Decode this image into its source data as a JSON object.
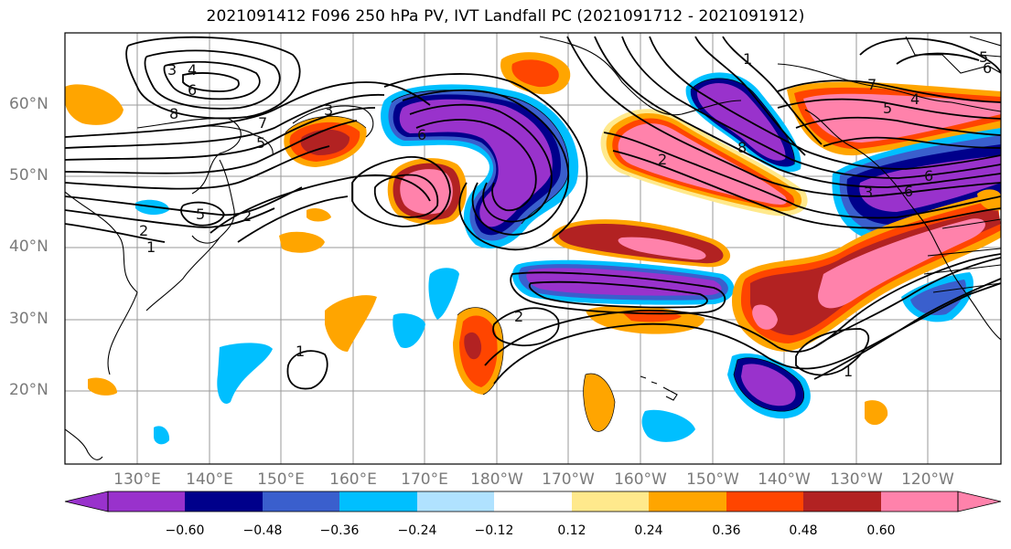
{
  "title": "2021091412 F096 250 hPa PV, IVT Landfall PC (2021091712 - 2021091912)",
  "lat_labels": [
    "60°N",
    "50°N",
    "40°N",
    "30°N",
    "20°N"
  ],
  "lon_labels": [
    "130°E",
    "140°E",
    "150°E",
    "160°E",
    "170°E",
    "180°W",
    "170°W",
    "160°W",
    "150°W",
    "140°W",
    "130°W",
    "120°W"
  ],
  "colorbar": {
    "ticks": [
      "−0.60",
      "−0.48",
      "−0.36",
      "−0.24",
      "−0.12",
      "0.12",
      "0.24",
      "0.36",
      "0.48",
      "0.60"
    ],
    "colors": [
      "#9932CC",
      "#00008B",
      "#3A5FCD",
      "#00BFFF",
      "#B0E2FF",
      "#FFFFFF",
      "#FFE98C",
      "#FFA500",
      "#FF4500",
      "#B22222",
      "#FF82AB"
    ]
  },
  "contour_labels": [
    "3",
    "4",
    "6",
    "8",
    "7",
    "5",
    "3",
    "2",
    "5",
    "1",
    "2",
    "6",
    "2",
    "1",
    "8",
    "7",
    "5",
    "4",
    "3",
    "6",
    "6",
    "2",
    "1",
    "5",
    "6"
  ],
  "colors": {
    "neg_strong": "#9932CC",
    "neg_dark": "#00008B",
    "neg_mid": "#3A5FCD",
    "neg_light": "#00BFFF",
    "neg_pale": "#B0E2FF",
    "pos_pale": "#FFE98C",
    "pos_light": "#FFA500",
    "pos_mid": "#FF4500",
    "pos_dark": "#B22222",
    "pos_strong": "#FF82AB"
  }
}
